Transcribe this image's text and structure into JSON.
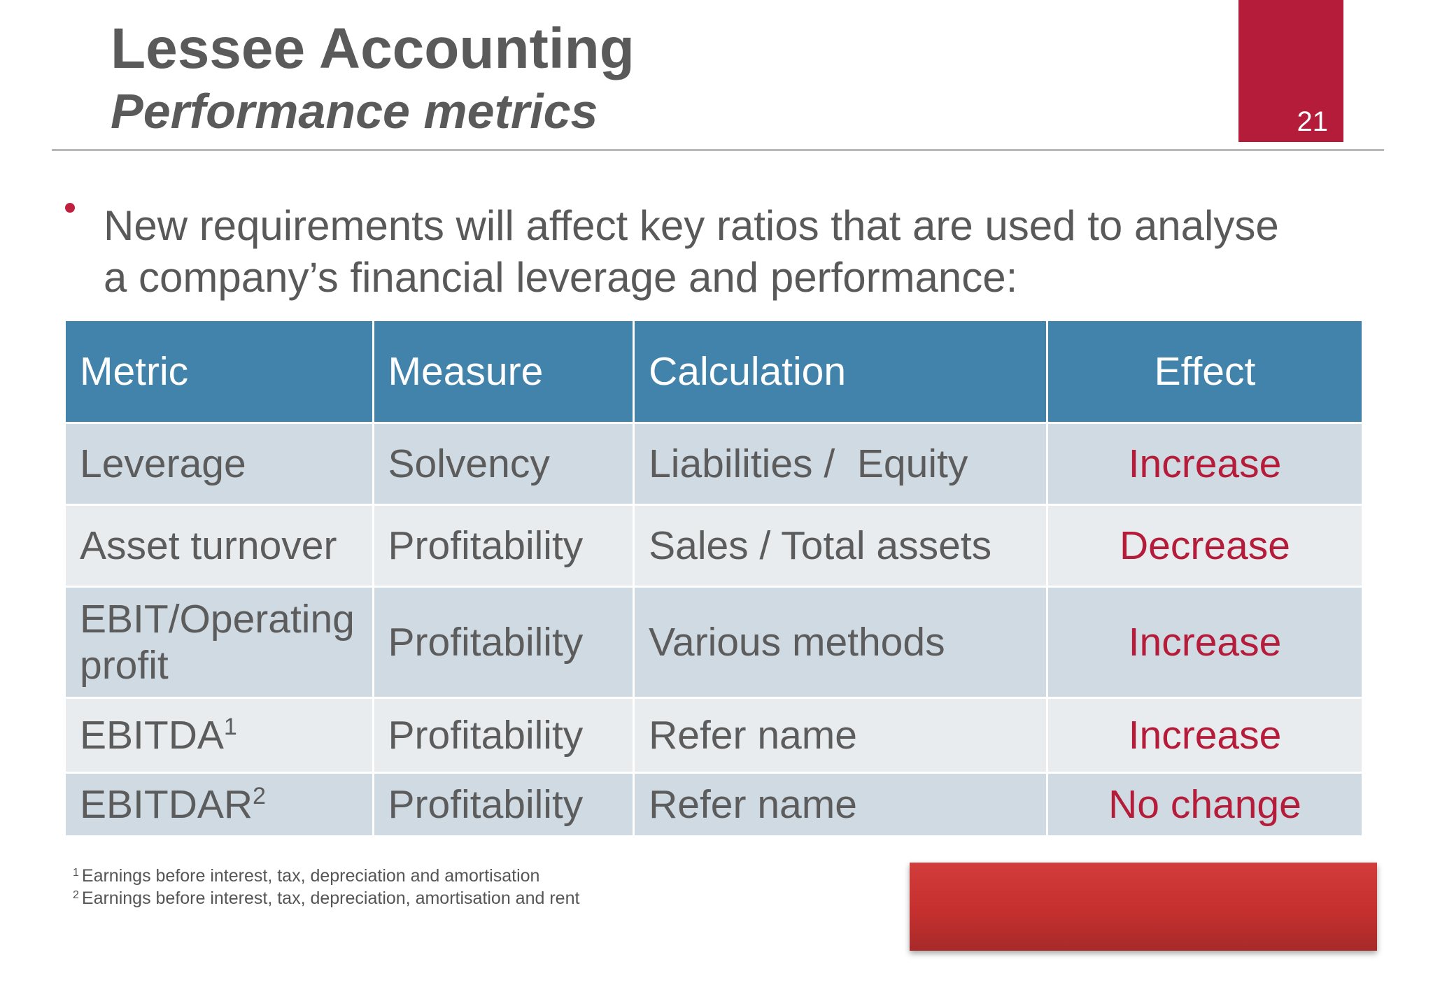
{
  "slide": {
    "title": "Lessee Accounting",
    "subtitle": "Performance metrics",
    "page_number": "21",
    "bullet": "New requirements will affect key ratios that are used to analyse a company’s financial leverage and performance:"
  },
  "table": {
    "headers": [
      "Metric",
      "Measure",
      "Calculation",
      "Effect"
    ],
    "rows": [
      {
        "metric": "Leverage",
        "sup": "",
        "measure": "Solvency",
        "calculation": "Liabilities /  Equity",
        "effect": "Increase"
      },
      {
        "metric": "Asset turnover",
        "sup": "",
        "measure": "Profitability",
        "calculation": "Sales / Total assets",
        "effect": "Decrease"
      },
      {
        "metric": "EBIT/Operating profit",
        "sup": "",
        "measure": "Profitability",
        "calculation": "Various methods",
        "effect": "Increase"
      },
      {
        "metric": "EBITDA",
        "sup": "1",
        "measure": "Profitability",
        "calculation": "Refer name",
        "effect": "Increase"
      },
      {
        "metric": "EBITDAR",
        "sup": "2",
        "measure": "Profitability",
        "calculation": "Refer name",
        "effect": "No change"
      }
    ]
  },
  "footnotes": [
    {
      "mark": "1",
      "text": "Earnings before interest, tax, depreciation and amortisation"
    },
    {
      "mark": "2",
      "text": "Earnings before interest, tax, depreciation, amortisation and rent"
    }
  ],
  "colors": {
    "accent_red": "#b51c3a",
    "table_header": "#4183ab",
    "row_dark": "#cfdae2",
    "row_light": "#e8ecef"
  }
}
